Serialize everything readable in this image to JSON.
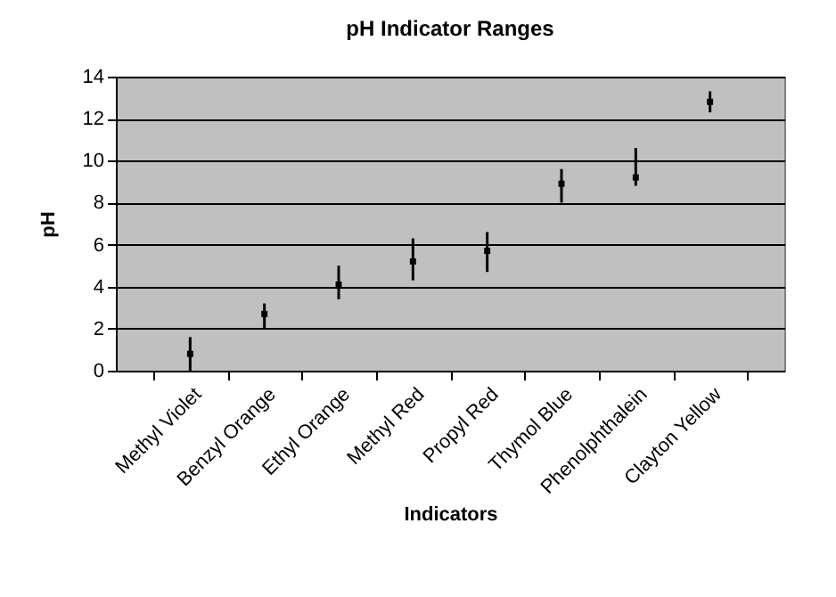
{
  "chart_data": {
    "type": "scatter",
    "title": "pH Indicator Ranges",
    "xlabel": "Indicators",
    "ylabel": "pH",
    "categories": [
      "Methyl Violet",
      "Benzyl Orange",
      "Ethyl Orange",
      "Methyl Red",
      "Propyl Red",
      "Thymol Blue",
      "Phenolphthalein",
      "Clayton Yellow"
    ],
    "values": [
      0.8,
      2.7,
      4.1,
      5.2,
      5.7,
      8.9,
      9.2,
      12.8
    ],
    "errors": [
      [
        0,
        1.6
      ],
      [
        2,
        3.2
      ],
      [
        3.4,
        5
      ],
      [
        4.3,
        6.3
      ],
      [
        4.7,
        6.6
      ],
      [
        8,
        9.6
      ],
      [
        8.8,
        10.6
      ],
      [
        12.3,
        13.3
      ]
    ],
    "color": "#000000",
    "marker": "square",
    "ylim": [
      0,
      14
    ],
    "yticks": [
      0,
      2,
      4,
      6,
      8,
      10,
      12,
      14
    ],
    "grid": "y"
  }
}
